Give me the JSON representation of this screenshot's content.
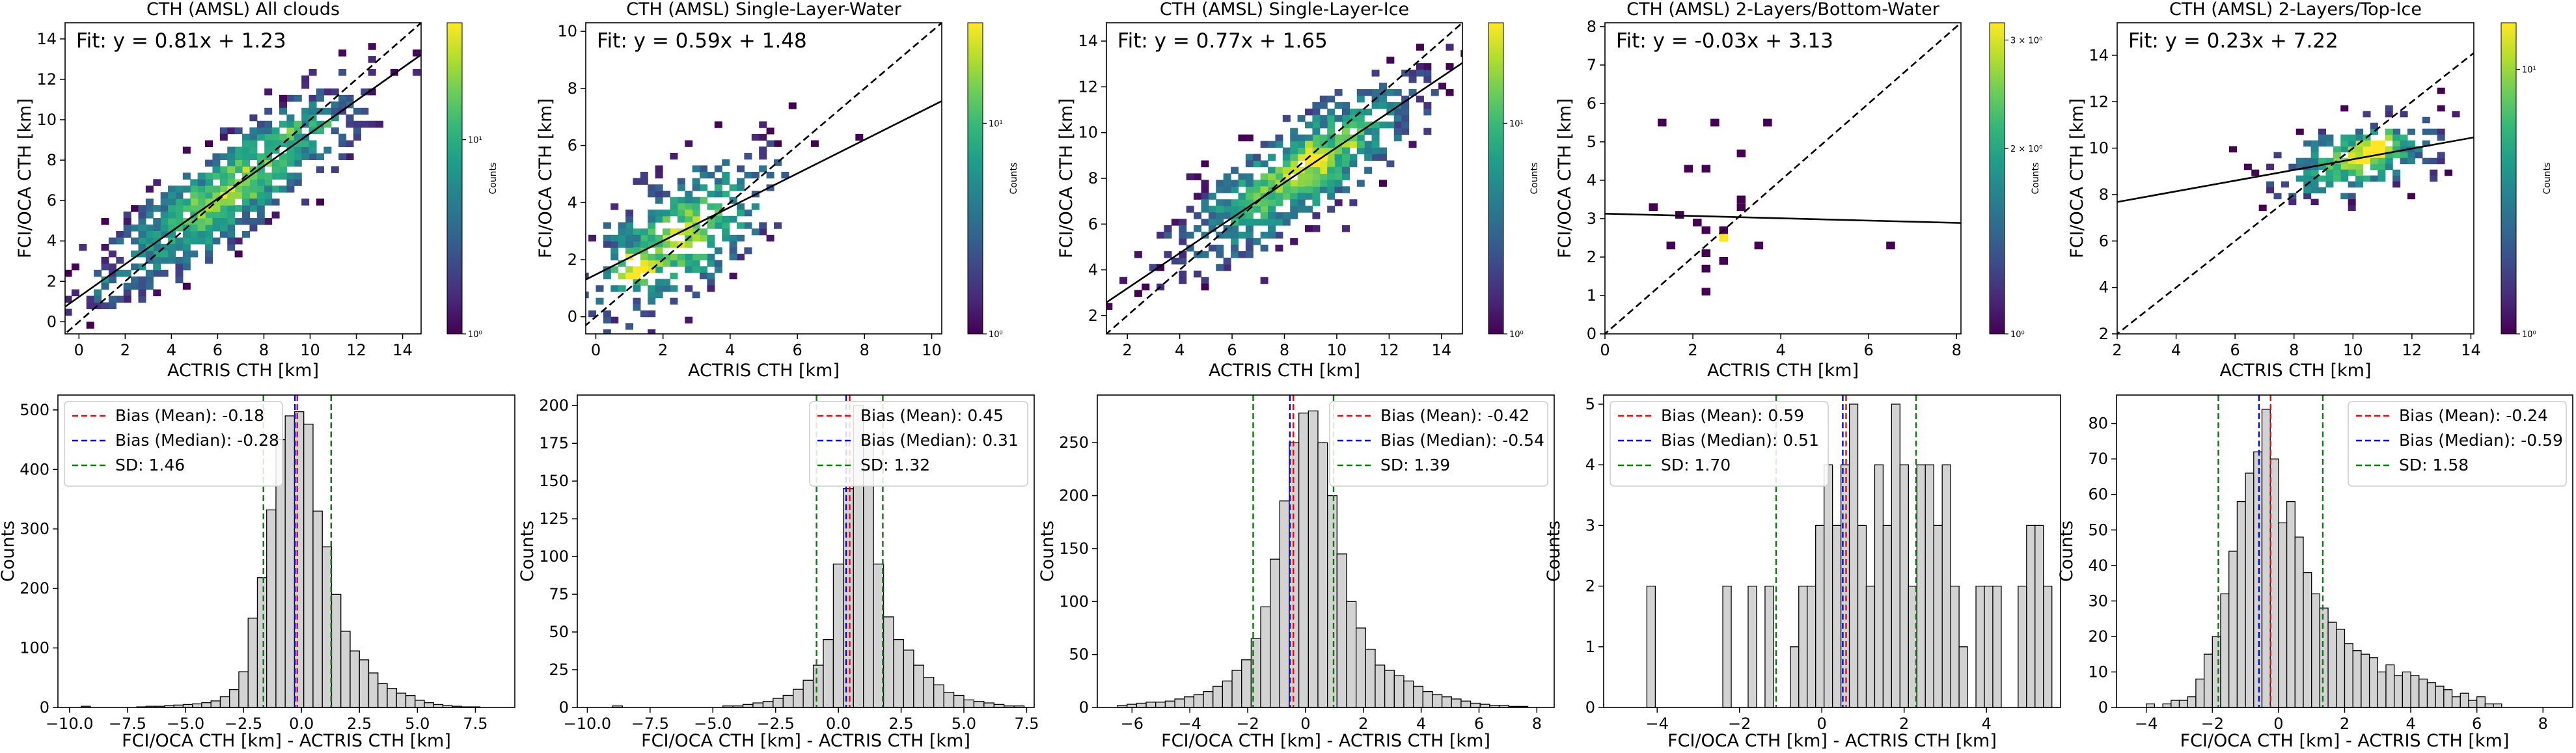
{
  "chart_data": [
    {
      "type": "heatmap",
      "title": "CTH (AMSL) All clouds",
      "fit_label": "Fit: y = 0.81x + 1.23",
      "fit": {
        "slope": 0.81,
        "intercept": 1.23
      },
      "xlabel": "ACTRIS CTH [km]",
      "ylabel": "FCI/OCA CTH [km]",
      "xlim": [
        -0.6,
        14.8
      ],
      "ylim": [
        -0.6,
        14.8
      ],
      "xticks": [
        0,
        2,
        4,
        6,
        8,
        10,
        12,
        14
      ],
      "yticks": [
        0,
        2,
        4,
        6,
        8,
        10,
        12,
        14
      ],
      "colorbar": {
        "label": "Counts",
        "scale": "log",
        "range": [
          1,
          40
        ],
        "ticks": [
          {
            "v": 1,
            "label": "10⁰"
          },
          {
            "v": 10,
            "label": "10¹"
          }
        ]
      },
      "density": {
        "cx": 6.5,
        "cy": 6.5,
        "rot_deg": 41,
        "sd_major": 3.6,
        "sd_minor": 1.0,
        "n_cells": 780,
        "seed": 11,
        "hot": [
          [
            1.2,
            1.5
          ],
          [
            9.0,
            9.5
          ],
          [
            10.5,
            10.0
          ]
        ]
      }
    },
    {
      "type": "heatmap",
      "title": "CTH (AMSL) Single-Layer-Water",
      "fit_label": "Fit: y = 0.59x + 1.48",
      "fit": {
        "slope": 0.59,
        "intercept": 1.48
      },
      "xlabel": "ACTRIS CTH [km]",
      "ylabel": "FCI/OCA CTH [km]",
      "xlim": [
        -0.3,
        10.3
      ],
      "ylim": [
        -0.6,
        10.3
      ],
      "xticks": [
        0,
        2,
        4,
        6,
        8,
        10
      ],
      "yticks": [
        0,
        2,
        4,
        6,
        8,
        10
      ],
      "colorbar": {
        "label": "Counts",
        "scale": "log",
        "range": [
          1,
          30
        ],
        "ticks": [
          {
            "v": 1,
            "label": "10⁰"
          },
          {
            "v": 10,
            "label": "10¹"
          }
        ]
      },
      "density": {
        "cx": 2.6,
        "cy": 2.9,
        "rot_deg": 45,
        "sd_major": 1.8,
        "sd_minor": 0.9,
        "n_cells": 330,
        "seed": 23,
        "hot": [
          [
            1.0,
            1.5
          ],
          [
            1.3,
            1.8
          ]
        ]
      }
    },
    {
      "type": "heatmap",
      "title": "CTH (AMSL) Single-Layer-Ice",
      "fit_label": "Fit: y = 0.77x + 1.65",
      "fit": {
        "slope": 0.77,
        "intercept": 1.65
      },
      "xlabel": "ACTRIS CTH [km]",
      "ylabel": "FCI/OCA CTH [km]",
      "xlim": [
        1.2,
        14.8
      ],
      "ylim": [
        1.2,
        14.8
      ],
      "xticks": [
        2,
        4,
        6,
        8,
        10,
        12,
        14
      ],
      "yticks": [
        2,
        4,
        6,
        8,
        10,
        12,
        14
      ],
      "colorbar": {
        "label": "Counts",
        "scale": "log",
        "range": [
          1,
          30
        ],
        "ticks": [
          {
            "v": 1,
            "label": "10⁰"
          },
          {
            "v": 10,
            "label": "10¹"
          }
        ]
      },
      "density": {
        "cx": 8.6,
        "cy": 8.3,
        "rot_deg": 40,
        "sd_major": 2.9,
        "sd_minor": 0.95,
        "n_cells": 640,
        "seed": 37,
        "hot": [
          [
            10.5,
            10.0
          ],
          [
            9.0,
            9.0
          ]
        ]
      }
    },
    {
      "type": "heatmap",
      "title": "CTH (AMSL) 2-Layers/Bottom-Water",
      "fit_label": "Fit: y = -0.03x + 3.13",
      "fit": {
        "slope": -0.03,
        "intercept": 3.13
      },
      "xlabel": "ACTRIS CTH [km]",
      "ylabel": "FCI/OCA CTH [km]",
      "xlim": [
        0,
        8.1
      ],
      "ylim": [
        0,
        8.1
      ],
      "xticks": [
        0,
        2,
        4,
        6,
        8
      ],
      "yticks": [
        0,
        1,
        2,
        3,
        4,
        5,
        6,
        7,
        8
      ],
      "colorbar": {
        "label": "Counts",
        "scale": "log",
        "range": [
          1,
          3.2
        ],
        "ticks": [
          {
            "v": 1,
            "label": "10⁰"
          },
          {
            "v": 2,
            "label": "2 × 10⁰"
          },
          {
            "v": 3,
            "label": "3 × 10⁰"
          }
        ]
      },
      "points": [
        [
          1.3,
          5.4
        ],
        [
          2.5,
          5.6
        ],
        [
          3.6,
          5.5
        ],
        [
          3.0,
          4.7
        ],
        [
          1.9,
          4.3
        ],
        [
          2.3,
          4.2
        ],
        [
          1.2,
          3.2
        ],
        [
          1.6,
          3.15
        ],
        [
          3.1,
          3.2
        ],
        [
          2.0,
          2.9
        ],
        [
          2.6,
          2.6
        ],
        [
          2.2,
          2.7
        ],
        [
          3.5,
          2.2
        ],
        [
          6.6,
          2.2
        ],
        [
          2.2,
          2.1
        ],
        [
          2.7,
          1.8
        ],
        [
          1.5,
          2.4
        ],
        [
          2.4,
          1.6
        ],
        [
          2.4,
          1.2
        ],
        [
          3.0,
          3.5
        ]
      ],
      "hot_point": [
        2.6,
        2.5
      ]
    },
    {
      "type": "heatmap",
      "title": "CTH (AMSL) 2-Layers/Top-Ice",
      "fit_label": "Fit: y = 0.23x + 7.22",
      "fit": {
        "slope": 0.23,
        "intercept": 7.22
      },
      "xlabel": "ACTRIS CTH [km]",
      "ylabel": "FCI/OCA CTH [km]",
      "xlim": [
        2,
        14.1
      ],
      "ylim": [
        2,
        15.4
      ],
      "xticks": [
        2,
        4,
        6,
        8,
        10,
        12,
        14
      ],
      "yticks": [
        2,
        4,
        6,
        8,
        10,
        12,
        14
      ],
      "colorbar": {
        "label": "Counts",
        "scale": "log",
        "range": [
          1,
          15
        ],
        "ticks": [
          {
            "v": 1,
            "label": "10⁰"
          },
          {
            "v": 10,
            "label": "10¹"
          }
        ]
      },
      "density": {
        "cx": 10.2,
        "cy": 9.6,
        "rot_deg": 22,
        "sd_major": 1.5,
        "sd_minor": 0.75,
        "n_cells": 270,
        "seed": 53,
        "hot": [
          [
            11.0,
            10.2
          ],
          [
            10.5,
            9.8
          ]
        ]
      }
    },
    {
      "type": "bar",
      "subtype": "histogram",
      "xlabel": "FCI/OCA CTH [km] - ACTRIS CTH [km]",
      "ylabel": "Counts",
      "xlim": [
        -10.5,
        9.2
      ],
      "ylim": [
        0,
        525
      ],
      "xticks": [
        {
          "v": -10,
          "label": "−10.0"
        },
        {
          "v": -7.5,
          "label": "−7.5"
        },
        {
          "v": -5,
          "label": "−5.0"
        },
        {
          "v": -2.5,
          "label": "−2.5"
        },
        {
          "v": 0,
          "label": "0.0"
        },
        {
          "v": 2.5,
          "label": "2.5"
        },
        {
          "v": 5,
          "label": "5.0"
        },
        {
          "v": 7.5,
          "label": "7.5"
        }
      ],
      "yticks": [
        0,
        100,
        200,
        300,
        400,
        500
      ],
      "bin_start": -9.5,
      "bin_width": 0.4,
      "values": [
        2,
        0,
        0,
        0,
        0,
        0,
        1,
        2,
        2,
        3,
        4,
        5,
        6,
        8,
        11,
        18,
        30,
        60,
        150,
        218,
        332,
        450,
        490,
        497,
        476,
        330,
        270,
        190,
        128,
        95,
        80,
        58,
        40,
        32,
        24,
        20,
        12,
        8,
        5,
        3,
        2,
        1,
        1
      ],
      "bias_mean": -0.18,
      "bias_median": -0.28,
      "sd": 1.46,
      "legend_pos": "top-left",
      "legend": [
        "Bias (Mean): -0.18",
        "Bias (Median): -0.28",
        "SD: 1.46"
      ]
    },
    {
      "type": "bar",
      "subtype": "histogram",
      "xlabel": "FCI/OCA CTH [km] - ACTRIS CTH [km]",
      "ylabel": "Counts",
      "xlim": [
        -10.4,
        7.8
      ],
      "ylim": [
        0,
        207
      ],
      "xticks": [
        {
          "v": -10,
          "label": "−10.0"
        },
        {
          "v": -7.5,
          "label": "−7.5"
        },
        {
          "v": -5,
          "label": "−5.0"
        },
        {
          "v": -2.5,
          "label": "−2.5"
        },
        {
          "v": 0,
          "label": "0.0"
        },
        {
          "v": 2.5,
          "label": "2.5"
        },
        {
          "v": 5,
          "label": "5.0"
        },
        {
          "v": 7.5,
          "label": "7.5"
        }
      ],
      "yticks": [
        0,
        25,
        50,
        75,
        100,
        125,
        150,
        175,
        200
      ],
      "bin_start": -9.0,
      "bin_width": 0.4,
      "values": [
        1,
        0,
        0,
        0,
        0,
        0,
        0,
        0,
        0,
        0,
        0,
        1,
        1,
        2,
        3,
        4,
        6,
        8,
        12,
        18,
        28,
        45,
        95,
        145,
        200,
        175,
        95,
        60,
        45,
        38,
        28,
        20,
        15,
        10,
        8,
        5,
        4,
        3,
        2,
        1,
        1
      ],
      "bias_mean": 0.45,
      "bias_median": 0.31,
      "sd": 1.32,
      "legend_pos": "top-right",
      "legend": [
        "Bias (Mean): 0.45",
        "Bias (Median): 0.31",
        "SD: 1.32"
      ]
    },
    {
      "type": "bar",
      "subtype": "histogram",
      "xlabel": "FCI/OCA CTH [km] - ACTRIS CTH [km]",
      "ylabel": "Counts",
      "xlim": [
        -7.2,
        8.6
      ],
      "ylim": [
        0,
        295
      ],
      "xticks": [
        {
          "v": -6,
          "label": "−6"
        },
        {
          "v": -4,
          "label": "−4"
        },
        {
          "v": -2,
          "label": "−2"
        },
        {
          "v": 0,
          "label": "0"
        },
        {
          "v": 2,
          "label": "2"
        },
        {
          "v": 4,
          "label": "4"
        },
        {
          "v": 6,
          "label": "6"
        },
        {
          "v": 8,
          "label": "8"
        }
      ],
      "yticks": [
        0,
        50,
        100,
        150,
        200,
        250
      ],
      "bin_start": -6.5,
      "bin_width": 0.33,
      "values": [
        2,
        3,
        4,
        5,
        5,
        6,
        8,
        10,
        12,
        15,
        20,
        25,
        35,
        45,
        65,
        95,
        140,
        195,
        250,
        278,
        280,
        250,
        200,
        145,
        100,
        75,
        55,
        40,
        35,
        30,
        25,
        20,
        15,
        12,
        10,
        8,
        6,
        4,
        3,
        2,
        2,
        1,
        1
      ],
      "bias_mean": -0.42,
      "bias_median": -0.54,
      "sd": 1.39,
      "legend_pos": "top-right",
      "legend": [
        "Bias (Mean): -0.42",
        "Bias (Median): -0.54",
        "SD: 1.39"
      ]
    },
    {
      "type": "bar",
      "subtype": "histogram",
      "xlabel": "FCI/OCA CTH [km] - ACTRIS CTH [km]",
      "ylabel": "Counts",
      "xlim": [
        -5.3,
        5.8
      ],
      "ylim": [
        0,
        5.15
      ],
      "xticks": [
        {
          "v": -4,
          "label": "−4"
        },
        {
          "v": -2,
          "label": "−2"
        },
        {
          "v": 0,
          "label": "0"
        },
        {
          "v": 2,
          "label": "2"
        },
        {
          "v": 4,
          "label": "4"
        }
      ],
      "yticks": [
        0,
        1,
        2,
        3,
        4,
        5
      ],
      "bin_start": -4.25,
      "bin_width": 0.205,
      "values": [
        2,
        0,
        0,
        0,
        0,
        0,
        0,
        0,
        0,
        2,
        0,
        0,
        2,
        0,
        2,
        0,
        0,
        1,
        2,
        2,
        3,
        4,
        3,
        4,
        5,
        3,
        2,
        4,
        3,
        5,
        4,
        2,
        4,
        4,
        3,
        4,
        2,
        1,
        0,
        2,
        2,
        2,
        0,
        0,
        2,
        3,
        3,
        2
      ],
      "bias_mean": 0.59,
      "bias_median": 0.51,
      "sd": 1.7,
      "legend_pos": "top-left",
      "legend": [
        "Bias (Mean): 0.59",
        "Bias (Median): 0.51",
        "SD: 1.70"
      ]
    },
    {
      "type": "bar",
      "subtype": "histogram",
      "xlabel": "FCI/OCA CTH [km] - ACTRIS CTH [km]",
      "ylabel": "Counts",
      "xlim": [
        -4.9,
        8.9
      ],
      "ylim": [
        0,
        88
      ],
      "xticks": [
        {
          "v": -4,
          "label": "−4"
        },
        {
          "v": -2,
          "label": "−2"
        },
        {
          "v": 0,
          "label": "0"
        },
        {
          "v": 2,
          "label": "2"
        },
        {
          "v": 4,
          "label": "4"
        },
        {
          "v": 6,
          "label": "6"
        },
        {
          "v": 8,
          "label": "8"
        }
      ],
      "yticks": [
        0,
        10,
        20,
        30,
        40,
        50,
        60,
        70,
        80
      ],
      "bin_start": -4.0,
      "bin_width": 0.25,
      "values": [
        1,
        0,
        1,
        2,
        2,
        3,
        8,
        15,
        20,
        32,
        44,
        58,
        66,
        72,
        84,
        70,
        52,
        58,
        48,
        38,
        32,
        28,
        24,
        22,
        18,
        16,
        15,
        14,
        10,
        12,
        9,
        10,
        9,
        8,
        7,
        6,
        5,
        3,
        4,
        2,
        3,
        1,
        1
      ],
      "bias_mean": -0.24,
      "bias_median": -0.59,
      "sd": 1.58,
      "legend_pos": "top-right",
      "legend": [
        "Bias (Mean): -0.24",
        "Bias (Median): -0.59",
        "SD: 1.58"
      ]
    }
  ]
}
